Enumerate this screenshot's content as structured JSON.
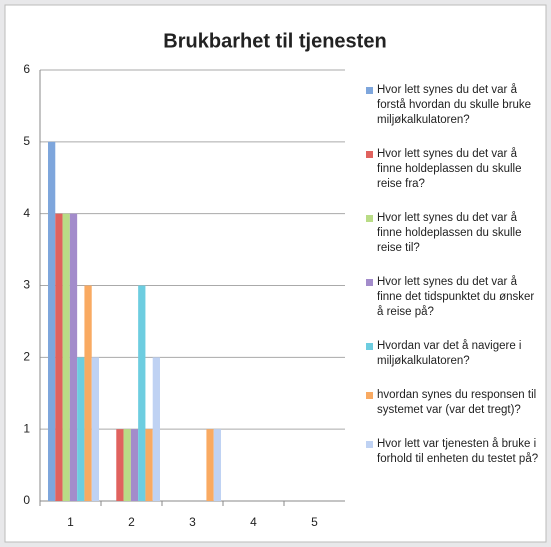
{
  "chart_data": {
    "type": "bar",
    "title": "Brukbarhet til tjenesten",
    "categories": [
      "1",
      "2",
      "3",
      "4",
      "5"
    ],
    "series": [
      {
        "name": "Hvor lett synes du det var å forstå hvordan du skulle bruke miljøkalkulatoren?",
        "color": "#7ea6dc",
        "values": [
          5,
          0,
          0,
          0,
          0
        ]
      },
      {
        "name": "Hvor lett synes du det var å finne holdeplassen du skulle reise fra?",
        "color": "#e0625e",
        "values": [
          4,
          1,
          0,
          0,
          0
        ]
      },
      {
        "name": "Hvor lett synes du det var å finne holdeplassen du skulle reise til?",
        "color": "#b9dc86",
        "values": [
          4,
          1,
          0,
          0,
          0
        ]
      },
      {
        "name": "Hvor lett synes du det var å finne det tidspunktet du ønsker å reise på?",
        "color": "#a38ccb",
        "values": [
          4,
          1,
          0,
          0,
          0
        ]
      },
      {
        "name": "Hvordan var det å navigere i miljøkalkulatoren?",
        "color": "#6dcde0",
        "values": [
          2,
          3,
          0,
          0,
          0
        ]
      },
      {
        "name": "hvordan synes du responsen til systemet var (var det tregt)?",
        "color": "#f9aa62",
        "values": [
          3,
          1,
          1,
          0,
          0
        ]
      },
      {
        "name": "Hvor lett var tjenesten å bruke i forhold til enheten du testet på?",
        "color": "#bfd2f3",
        "values": [
          2,
          2,
          1,
          0,
          0
        ]
      }
    ],
    "ylim": [
      0,
      6
    ],
    "yticks": [
      0,
      1,
      2,
      3,
      4,
      5,
      6
    ],
    "grid": true
  }
}
